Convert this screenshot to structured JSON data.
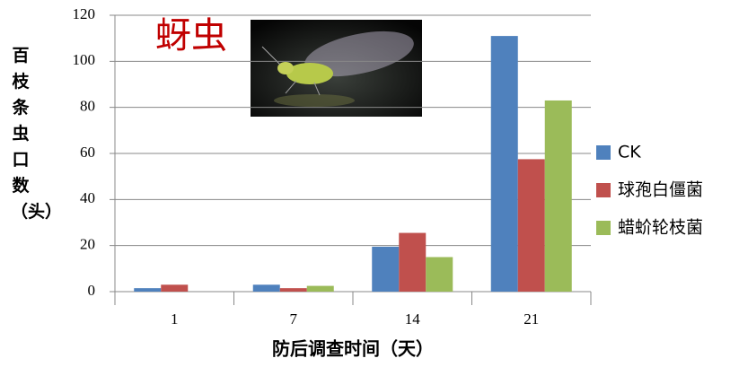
{
  "chart_data": {
    "type": "bar",
    "annotation": "蚜虫",
    "x_label": "防后调查时间（天）",
    "y_label": "百枝条虫口数（头）",
    "categories": [
      "1",
      "7",
      "14",
      "21"
    ],
    "series": [
      {
        "name": "CK",
        "color": "#4f81bd",
        "values": [
          1.5,
          3,
          19.5,
          111
        ]
      },
      {
        "name": "球孢白僵菌",
        "color": "#c0504d",
        "values": [
          3,
          1.5,
          25.5,
          57.5
        ]
      },
      {
        "name": "蜡蚧轮枝菌",
        "color": "#9bbb59",
        "values": [
          0,
          2.5,
          15,
          83
        ]
      }
    ],
    "ylim": [
      0,
      120
    ],
    "yticks": [
      0,
      20,
      40,
      60,
      80,
      100,
      120
    ],
    "grid": true,
    "legend": "right"
  }
}
